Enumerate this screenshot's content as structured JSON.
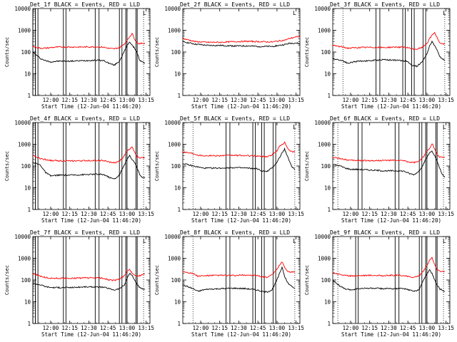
{
  "shared": {
    "ylabel": "Counts/sec",
    "xlabel": "Start Time (12-Jun-04 11:46:20)",
    "x_ticks": [
      "12:00",
      "12:15",
      "12:30",
      "12:45",
      "13:00",
      "13:15"
    ],
    "y_ticks": [
      "1",
      "10",
      "100",
      "1000",
      "10000"
    ],
    "corner_label": "L",
    "series_colors": {
      "events": "#000000",
      "lld": "#ff0000"
    }
  },
  "chart_data": [
    {
      "type": "line",
      "title": "Det_1f BLACK = Events, RED = LLD",
      "ylim": [
        1,
        10000
      ],
      "xlim_minutes": [
        0,
        92
      ],
      "x": [
        0,
        6,
        10,
        14,
        20,
        30,
        40,
        50,
        56,
        60,
        64,
        68,
        72,
        74,
        76,
        78,
        80,
        82,
        84,
        86,
        88
      ],
      "series": [
        {
          "values": [
            100,
            50,
            40,
            35,
            38,
            38,
            40,
            42,
            40,
            30,
            25,
            38,
            110,
            200,
            300,
            200,
            150,
            90,
            40,
            35,
            30
          ]
        },
        {
          "values": [
            180,
            150,
            150,
            160,
            170,
            170,
            170,
            175,
            165,
            145,
            140,
            160,
            240,
            330,
            500,
            720,
            400,
            260,
            240,
            250,
            260
          ]
        }
      ],
      "bands": [
        [
          0,
          2
        ],
        [
          2,
          4
        ],
        [
          24,
          26
        ],
        [
          49,
          52
        ],
        [
          68,
          70
        ],
        [
          73,
          74
        ],
        [
          81,
          82
        ]
      ],
      "dotted": [
        2,
        87
      ]
    },
    {
      "type": "line",
      "title": "Det_2f BLACK = Events, RED = LLD",
      "ylim": [
        1,
        10000
      ],
      "xlim_minutes": [
        0,
        92
      ],
      "x": [
        0,
        10,
        20,
        30,
        40,
        50,
        60,
        70,
        80,
        84,
        88,
        92
      ],
      "series": [
        {
          "values": [
            300,
            230,
            200,
            200,
            190,
            190,
            180,
            180,
            220,
            250,
            260,
            240
          ]
        },
        {
          "values": [
            420,
            300,
            280,
            280,
            300,
            310,
            300,
            290,
            350,
            420,
            480,
            520
          ]
        }
      ],
      "bands": [],
      "dotted": []
    },
    {
      "type": "line",
      "title": "Det_3f BLACK = Events, RED = LLD",
      "ylim": [
        1,
        10000
      ],
      "xlim_minutes": [
        0,
        92
      ],
      "x": [
        0,
        8,
        12,
        16,
        20,
        30,
        40,
        50,
        58,
        62,
        66,
        70,
        74,
        76,
        78,
        80,
        82,
        84,
        86,
        88
      ],
      "series": [
        {
          "values": [
            50,
            40,
            30,
            35,
            38,
            40,
            45,
            42,
            38,
            25,
            22,
            35,
            80,
            200,
            300,
            200,
            120,
            60,
            50,
            40
          ]
        },
        {
          "values": [
            200,
            170,
            150,
            155,
            160,
            165,
            160,
            170,
            160,
            140,
            135,
            160,
            250,
            400,
            600,
            800,
            450,
            260,
            230,
            240
          ]
        }
      ],
      "bands": [
        [
          34,
          37
        ],
        [
          55,
          57
        ],
        [
          62,
          64
        ],
        [
          71,
          73
        ]
      ],
      "dotted": [
        8,
        88
      ]
    },
    {
      "type": "line",
      "title": "Det_4f BLACK = Events, RED = LLD",
      "ylim": [
        1,
        10000
      ],
      "xlim_minutes": [
        0,
        92
      ],
      "x": [
        0,
        6,
        10,
        14,
        20,
        30,
        40,
        50,
        56,
        60,
        64,
        68,
        72,
        74,
        76,
        78,
        80,
        82,
        84,
        86,
        88
      ],
      "series": [
        {
          "values": [
            150,
            110,
            50,
            35,
            38,
            38,
            40,
            42,
            40,
            30,
            25,
            38,
            120,
            200,
            300,
            200,
            150,
            80,
            40,
            30,
            28
          ]
        },
        {
          "values": [
            300,
            220,
            200,
            180,
            175,
            170,
            175,
            180,
            175,
            150,
            140,
            165,
            300,
            500,
            600,
            800,
            450,
            260,
            240,
            240,
            250
          ]
        }
      ],
      "bands": [
        [
          0,
          2
        ],
        [
          2,
          4
        ],
        [
          24,
          26
        ],
        [
          49,
          52
        ],
        [
          68,
          70
        ],
        [
          73,
          74
        ],
        [
          81,
          82
        ]
      ],
      "dotted": [
        2,
        87
      ]
    },
    {
      "type": "line",
      "title": "Det_5f BLACK = Events, RED = LLD",
      "ylim": [
        1,
        10000
      ],
      "xlim_minutes": [
        0,
        92
      ],
      "x": [
        0,
        8,
        12,
        16,
        20,
        30,
        40,
        50,
        58,
        62,
        66,
        70,
        74,
        76,
        78,
        80,
        82,
        84,
        86,
        88
      ],
      "series": [
        {
          "values": [
            130,
            100,
            90,
            80,
            80,
            80,
            85,
            80,
            75,
            60,
            55,
            80,
            150,
            250,
            400,
            600,
            300,
            150,
            90,
            70
          ]
        },
        {
          "values": [
            450,
            380,
            320,
            300,
            300,
            300,
            310,
            300,
            290,
            280,
            270,
            320,
            500,
            800,
            1000,
            1200,
            700,
            500,
            450,
            450
          ]
        }
      ],
      "bands": [
        [
          34,
          37
        ],
        [
          55,
          57
        ],
        [
          62,
          64
        ],
        [
          71,
          73
        ]
      ],
      "dotted": [
        8,
        88
      ]
    },
    {
      "type": "line",
      "title": "Det_6f BLACK = Events, RED = LLD",
      "ylim": [
        1,
        10000
      ],
      "xlim_minutes": [
        0,
        92
      ],
      "x": [
        0,
        6,
        10,
        14,
        20,
        30,
        40,
        50,
        56,
        60,
        64,
        68,
        72,
        74,
        76,
        78,
        80,
        82,
        84,
        86,
        88
      ],
      "series": [
        {
          "values": [
            120,
            100,
            80,
            70,
            70,
            65,
            60,
            60,
            58,
            45,
            40,
            60,
            150,
            250,
            400,
            500,
            300,
            160,
            80,
            40,
            30
          ]
        },
        {
          "values": [
            250,
            220,
            200,
            180,
            180,
            175,
            180,
            180,
            175,
            150,
            145,
            165,
            300,
            500,
            650,
            1100,
            600,
            350,
            260,
            250,
            260
          ]
        }
      ],
      "bands": [
        [
          20,
          23
        ],
        [
          49,
          52
        ],
        [
          68,
          70
        ],
        [
          73,
          74
        ],
        [
          81,
          82
        ]
      ],
      "dotted": [
        4,
        87
      ]
    },
    {
      "type": "line",
      "title": "Det_7f BLACK = Events, RED = LLD",
      "ylim": [
        1,
        10000
      ],
      "xlim_minutes": [
        0,
        92
      ],
      "x": [
        0,
        6,
        10,
        14,
        20,
        30,
        40,
        50,
        56,
        60,
        64,
        68,
        72,
        74,
        76,
        78,
        80,
        82,
        84,
        86,
        88
      ],
      "series": [
        {
          "values": [
            70,
            60,
            50,
            45,
            45,
            45,
            48,
            48,
            46,
            40,
            35,
            40,
            60,
            120,
            200,
            160,
            100,
            60,
            45,
            40,
            38
          ]
        },
        {
          "values": [
            200,
            150,
            130,
            120,
            120,
            120,
            125,
            125,
            120,
            100,
            95,
            110,
            160,
            260,
            300,
            200,
            170,
            150,
            160,
            180,
            190
          ]
        }
      ],
      "bands": [
        [
          0,
          2
        ],
        [
          2,
          4
        ],
        [
          24,
          26
        ],
        [
          49,
          52
        ],
        [
          68,
          70
        ],
        [
          73,
          74
        ],
        [
          81,
          82
        ]
      ],
      "dotted": [
        2,
        87
      ]
    },
    {
      "type": "line",
      "title": "Det_8f BLACK = Events, RED = LLD",
      "ylim": [
        1,
        10000
      ],
      "xlim_minutes": [
        0,
        92
      ],
      "x": [
        0,
        8,
        12,
        16,
        20,
        30,
        40,
        50,
        58,
        62,
        66,
        70,
        74,
        76,
        78,
        80,
        82,
        84,
        86,
        88
      ],
      "series": [
        {
          "values": [
            60,
            40,
            30,
            35,
            38,
            40,
            42,
            40,
            35,
            30,
            28,
            35,
            100,
            200,
            400,
            150,
            80,
            60,
            50,
            40
          ]
        },
        {
          "values": [
            250,
            200,
            150,
            155,
            160,
            165,
            160,
            170,
            160,
            140,
            135,
            170,
            300,
            500,
            700,
            400,
            260,
            230,
            240,
            240
          ]
        }
      ],
      "bands": [
        [
          34,
          37
        ],
        [
          55,
          57
        ],
        [
          62,
          64
        ],
        [
          71,
          73
        ]
      ],
      "dotted": [
        8,
        88
      ]
    },
    {
      "type": "line",
      "title": "Det_9f BLACK = Events, RED = LLD",
      "ylim": [
        1,
        10000
      ],
      "xlim_minutes": [
        0,
        92
      ],
      "x": [
        0,
        6,
        10,
        14,
        20,
        30,
        40,
        50,
        56,
        60,
        64,
        68,
        72,
        74,
        76,
        78,
        80,
        82,
        84,
        86,
        88
      ],
      "series": [
        {
          "values": [
            100,
            50,
            38,
            35,
            40,
            42,
            40,
            40,
            40,
            35,
            30,
            38,
            120,
            200,
            300,
            200,
            100,
            60,
            40,
            35,
            30
          ]
        },
        {
          "values": [
            220,
            180,
            160,
            155,
            160,
            165,
            160,
            165,
            160,
            140,
            135,
            160,
            300,
            450,
            800,
            1100,
            500,
            300,
            250,
            240,
            250
          ]
        }
      ],
      "bands": [
        [
          18,
          20
        ],
        [
          49,
          52
        ],
        [
          68,
          70
        ],
        [
          73,
          74
        ],
        [
          81,
          82
        ]
      ],
      "dotted": [
        4,
        87
      ]
    }
  ]
}
